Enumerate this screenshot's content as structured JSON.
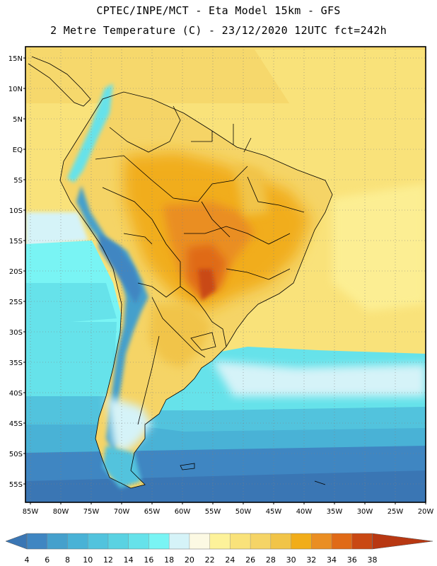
{
  "header": {
    "line1": "CPTEC/INPE/MCT -  Eta Model 15km - GFS",
    "line2": "2 Metre Temperature (C) - 23/12/2020 12UTC fct=242h"
  },
  "map": {
    "lat_labels": [
      "15N",
      "10N",
      "5N",
      "EQ",
      "5S",
      "10S",
      "15S",
      "20S",
      "25S",
      "30S",
      "35S",
      "40S",
      "45S",
      "50S",
      "55S"
    ],
    "lon_labels": [
      "85W",
      "80W",
      "75W",
      "70W",
      "65W",
      "60W",
      "55W",
      "50W",
      "45W",
      "40W",
      "35W",
      "30W",
      "25W",
      "20W"
    ],
    "lon_range": [
      -85,
      -20
    ],
    "lat_range": [
      -57.5,
      17
    ]
  },
  "colorbar": {
    "values": [
      "4",
      "6",
      "8",
      "10",
      "12",
      "14",
      "16",
      "18",
      "20",
      "22",
      "24",
      "26",
      "28",
      "30",
      "32",
      "34",
      "36",
      "38"
    ],
    "colors": [
      "#3a76b4",
      "#3f86c2",
      "#45a0cc",
      "#49b2d6",
      "#52c3dd",
      "#5ad2e2",
      "#66e2ea",
      "#79f4f4",
      "#d5f3f8",
      "#fcf9e3",
      "#fdf29a",
      "#f9e27a",
      "#f5d466",
      "#f1c448",
      "#f1ad1a",
      "#ea8e23",
      "#e06a17",
      "#c94813",
      "#b83812"
    ]
  }
}
